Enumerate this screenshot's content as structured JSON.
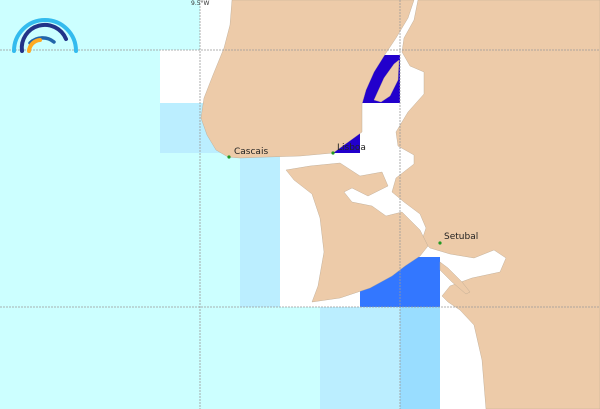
{
  "map": {
    "grid_label": "9.5°W",
    "cities": [
      {
        "name": "Cascais"
      },
      {
        "name": "Lisboa"
      },
      {
        "name": "Setubal"
      }
    ],
    "colors": {
      "land": "#edcba9",
      "water": "#ffffff",
      "cell_cyan": "#ccffff",
      "cell_light_blue": "#bbeeff",
      "cell_sky": "#99ddff",
      "cell_blue": "#3377ff",
      "cell_dark_blue": "#2200cc",
      "city_dot": "#229922"
    },
    "logo": {
      "icon": "wave-arcs-logo"
    }
  }
}
